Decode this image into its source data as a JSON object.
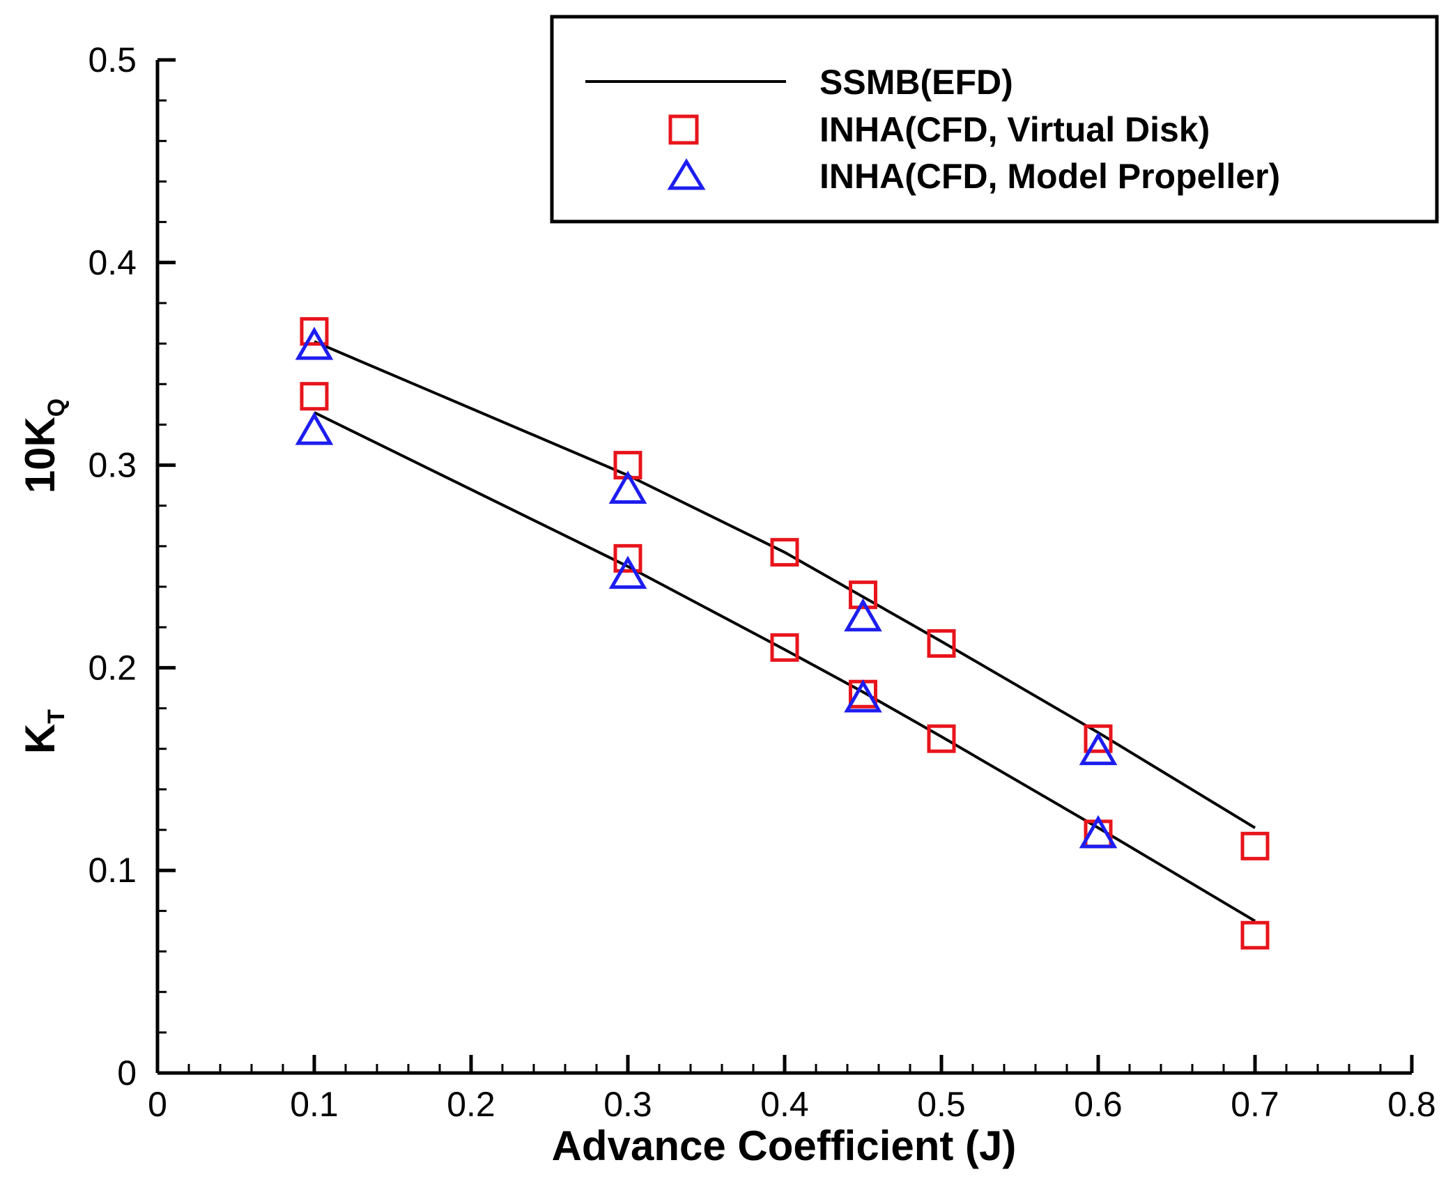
{
  "chart_data": {
    "type": "line",
    "xlabel": "Advance Coefficient (J)",
    "ylabel_upper": {
      "main": "10K",
      "sub": "Q"
    },
    "ylabel_lower": {
      "main": "K",
      "sub": "T"
    },
    "xlim": [
      0,
      0.8
    ],
    "ylim": [
      0,
      0.5
    ],
    "x_ticks": [
      0,
      0.1,
      0.2,
      0.3,
      0.4,
      0.5,
      0.6,
      0.7,
      0.8
    ],
    "x_tick_labels": [
      "0",
      "0.1",
      "0.2",
      "0.3",
      "0.4",
      "0.5",
      "0.6",
      "0.7",
      "0.8"
    ],
    "y_ticks": [
      0,
      0.1,
      0.2,
      0.3,
      0.4,
      0.5
    ],
    "y_tick_labels": [
      "0",
      "0.1",
      "0.2",
      "0.3",
      "0.4",
      "0.5"
    ],
    "legend_position": "top-right",
    "series": [
      {
        "name": "SSMB(EFD)",
        "style": "line",
        "color": "#000000",
        "curves": [
          {
            "id": "10KQ",
            "x": [
              0.1,
              0.3,
              0.4,
              0.45,
              0.5,
              0.6,
              0.7
            ],
            "y": [
              0.361,
              0.295,
              0.257,
              0.235,
              0.213,
              0.168,
              0.121
            ]
          },
          {
            "id": "KT",
            "x": [
              0.1,
              0.3,
              0.4,
              0.45,
              0.5,
              0.6,
              0.7
            ],
            "y": [
              0.326,
              0.25,
              0.209,
              0.188,
              0.166,
              0.121,
              0.075
            ]
          }
        ]
      },
      {
        "name": "INHA(CFD, Virtual Disk)",
        "style": "square",
        "color": "#e8141b",
        "points": {
          "x": [
            0.1,
            0.3,
            0.4,
            0.45,
            0.5,
            0.6,
            0.7,
            0.1,
            0.3,
            0.4,
            0.45,
            0.5,
            0.6,
            0.7
          ],
          "y": [
            0.366,
            0.3,
            0.257,
            0.236,
            0.212,
            0.165,
            0.112,
            0.334,
            0.254,
            0.21,
            0.187,
            0.165,
            0.118,
            0.068
          ]
        }
      },
      {
        "name": "INHA(CFD, Model Propeller)",
        "style": "triangle",
        "color": "#1d1df0",
        "points": {
          "x": [
            0.1,
            0.3,
            0.45,
            0.6,
            0.1,
            0.3,
            0.45,
            0.6
          ],
          "y": [
            0.359,
            0.288,
            0.225,
            0.159,
            0.317,
            0.246,
            0.185,
            0.118
          ]
        }
      }
    ]
  }
}
